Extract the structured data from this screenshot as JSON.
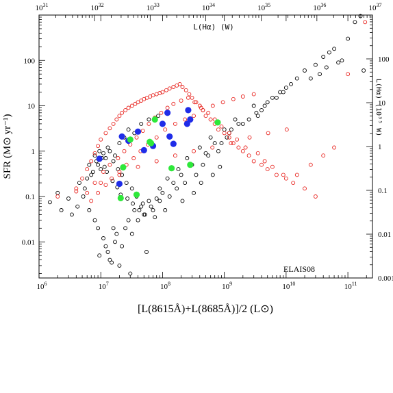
{
  "chart_data": {
    "type": "scatter",
    "title": "",
    "xlabel": "[L(8615Å)+L(8685Å)]/2 (L⊙)",
    "ylabel": "SFR (M⊙ yr⁻¹)",
    "top_xlabel": "L(Hα) (W)",
    "right_ylabel": "L(Hα) (10³⁵ W)",
    "annotation": "ELAIS08",
    "x_scale": "log",
    "y_scale": "log",
    "xlim": [
      1000000,
      250000000000
    ],
    "ylim": [
      0.0016,
      1000
    ],
    "top_xlim": [
      1e+31,
      1e+37
    ],
    "right_ylim": [
      0.001,
      1000
    ],
    "grid": false,
    "x_ticks": [
      {
        "value": 1000000,
        "base": "10",
        "exp": "6"
      },
      {
        "value": 10000000,
        "base": "10",
        "exp": "7"
      },
      {
        "value": 100000000,
        "base": "10",
        "exp": "8"
      },
      {
        "value": 1000000000,
        "base": "10",
        "exp": "9"
      },
      {
        "value": 10000000000,
        "base": "10",
        "exp": "10"
      },
      {
        "value": 100000000000,
        "base": "10",
        "exp": "11"
      }
    ],
    "y_ticks": [
      {
        "value": 0.01,
        "label": "0.01"
      },
      {
        "value": 0.1,
        "label": "0.1"
      },
      {
        "value": 1,
        "label": "1"
      },
      {
        "value": 10,
        "label": "10"
      },
      {
        "value": 100,
        "label": "100"
      }
    ],
    "top_ticks": [
      {
        "value": 1e+31,
        "base": "10",
        "exp": "31"
      },
      {
        "value": 1e+32,
        "base": "10",
        "exp": "32"
      },
      {
        "value": 1e+33,
        "base": "10",
        "exp": "33"
      },
      {
        "value": 1e+34,
        "base": "10",
        "exp": "34"
      },
      {
        "value": 1e+35,
        "base": "10",
        "exp": "35"
      },
      {
        "value": 1e+36,
        "base": "10",
        "exp": "36"
      },
      {
        "value": 1e+37,
        "base": "10",
        "exp": "37"
      }
    ],
    "right_ticks": [
      {
        "value": 100,
        "label": "100"
      },
      {
        "value": 10,
        "label": "10"
      },
      {
        "value": 1,
        "label": "1"
      },
      {
        "value": 0.1,
        "label": "0.1"
      },
      {
        "value": 0.01,
        "label": "0.01"
      },
      {
        "value": 0.001,
        "label": "0.001"
      }
    ],
    "series": [
      {
        "marker": "open-circle",
        "color": "#000000",
        "x": [
          1500000,
          2300000,
          3000000,
          3400000,
          4200000,
          5200000,
          6500000,
          8000000,
          9000000,
          9500000,
          11000000,
          12000000,
          13000000,
          14000000,
          15000000,
          16000000,
          17000000,
          18000000,
          20000000,
          22000000,
          25000000,
          28000000,
          30000000,
          32000000,
          35000000,
          40000000,
          45000000,
          50000000,
          55000000,
          60000000,
          70000000,
          80000000,
          90000000,
          100000000,
          120000000,
          150000000,
          180000000,
          200000000,
          250000000,
          300000000,
          400000000,
          500000000,
          600000000,
          700000000,
          1000000000,
          1200000000,
          1500000000,
          2000000000,
          3000000000,
          3500000000,
          4000000000,
          5000000000,
          6000000000,
          8000000000,
          10000000000,
          15000000000,
          20000000000,
          30000000000,
          40000000000,
          50000000000,
          60000000000,
          80000000000,
          100000000000,
          130000000000,
          160000000000,
          180000000000,
          2000000,
          4500000,
          5500000,
          7000000,
          9000000,
          10000000,
          12000000,
          14000000,
          17000000,
          20000000,
          24000000,
          28000000,
          35000000,
          45000000,
          60000000,
          85000000,
          6000000,
          7500000,
          8500000,
          11000000,
          13000000,
          16000000,
          19000000,
          22000000,
          26000000,
          32000000,
          38000000,
          48000000,
          65000000,
          90000000,
          130000000,
          170000000,
          230000000,
          350000000,
          450000000,
          550000000,
          800000000,
          900000000,
          1100000000,
          1300000000,
          1700000000,
          2500000000,
          3300000000,
          4500000000,
          7000000000,
          9000000000,
          12000000000,
          25000000000,
          35000000000,
          45000000000,
          70000000000,
          6500000,
          8000000,
          9500000,
          10500000,
          11500000,
          12500000,
          15500000,
          18500000,
          21000000,
          27000000,
          33000000,
          42000000,
          52000000,
          75000000,
          110000000,
          210000000,
          320000000,
          420000000,
          650000000,
          850000000
        ],
        "y": [
          0.075,
          0.05,
          0.09,
          0.04,
          0.06,
          0.1,
          0.05,
          0.03,
          0.02,
          0.005,
          0.012,
          0.008,
          0.006,
          0.004,
          0.0035,
          0.02,
          0.01,
          0.015,
          0.003,
          0.008,
          0.02,
          0.03,
          0.002,
          0.015,
          0.05,
          0.03,
          0.06,
          0.04,
          0.006,
          0.08,
          0.05,
          0.09,
          0.15,
          0.12,
          0.25,
          0.2,
          0.4,
          0.3,
          0.7,
          0.5,
          1.2,
          0.9,
          2,
          1.5,
          3,
          2.5,
          5,
          4,
          10,
          6,
          8,
          12,
          15,
          20,
          25,
          40,
          60,
          80,
          120,
          150,
          180,
          100,
          300,
          700,
          950,
          60,
          0.12,
          0.2,
          0.15,
          0.3,
          0.5,
          0.4,
          0.7,
          1,
          0.8,
          1.5,
          2,
          3,
          2.5,
          4,
          5,
          6,
          0.25,
          0.35,
          0.6,
          0.9,
          1.2,
          0.6,
          0.4,
          0.3,
          0.2,
          0.15,
          0.1,
          0.07,
          0.06,
          0.08,
          0.1,
          0.15,
          0.2,
          0.3,
          0.5,
          0.8,
          1,
          1.5,
          2,
          3,
          4,
          5,
          7,
          10,
          15,
          20,
          30,
          40,
          50,
          70,
          90,
          0.5,
          0.8,
          1,
          0.7,
          0.45,
          0.35,
          0.22,
          0.16,
          0.11,
          0.09,
          0.07,
          0.05,
          0.04,
          0.035,
          0.05,
          0.08,
          0.12,
          0.2,
          0.3,
          0.45
        ]
      },
      {
        "marker": "open-circle",
        "color": "#e8231e",
        "x": [
          4000000,
          5000000,
          6000000,
          7000000,
          8000000,
          9000000,
          10000000,
          12000000,
          14000000,
          16000000,
          18000000,
          20000000,
          22000000,
          25000000,
          28000000,
          32000000,
          36000000,
          40000000,
          45000000,
          50000000,
          56000000,
          63000000,
          70000000,
          80000000,
          90000000,
          100000000,
          115000000,
          130000000,
          150000000,
          170000000,
          190000000,
          210000000,
          240000000,
          270000000,
          300000000,
          350000000,
          400000000,
          450000000,
          500000000,
          600000000,
          700000000,
          800000000,
          1000000000,
          1200000000,
          1400000000,
          1700000000,
          2000000000,
          2500000000,
          3000000000,
          4000000000,
          5000000000,
          7000000000,
          10000000000,
          15000000000,
          25000000000,
          40000000000,
          60000000000,
          100000000000,
          190000000000,
          6000000,
          8000000,
          11000000,
          14000000,
          19000000,
          24000000,
          30000000,
          38000000,
          48000000,
          60000000,
          75000000,
          95000000,
          120000000,
          150000000,
          200000000,
          260000000,
          330000000,
          420000000,
          550000000,
          700000000,
          900000000,
          1200000000,
          1600000000,
          2200000000,
          3500000000,
          4500000000,
          6000000000,
          9000000000,
          13000000000,
          20000000000,
          30000000000,
          7000000,
          9000000,
          12000000,
          15000000,
          20000000,
          26000000,
          34000000,
          44000000,
          58000000,
          80000000,
          110000000,
          160000000,
          230000000,
          320000000,
          450000000,
          650000000,
          950000000,
          1400000000,
          2000000000,
          3000000000,
          2000000,
          4000000,
          10000000,
          20000000,
          40000000,
          80000000,
          160000000,
          320000000,
          640000000,
          1280000000,
          2560000000,
          5120000000,
          10240000000
        ],
        "y": [
          0.15,
          0.25,
          0.4,
          0.6,
          0.9,
          1.3,
          1.8,
          2.5,
          3.2,
          4,
          5,
          6,
          7,
          8,
          9,
          10,
          11,
          12,
          13,
          14,
          15,
          16,
          17,
          18,
          19,
          20,
          22,
          24,
          26,
          28,
          30,
          26,
          22,
          18,
          15,
          12,
          10,
          8,
          6,
          5,
          4,
          3,
          2.5,
          2,
          1.5,
          1.2,
          1,
          0.8,
          0.6,
          0.5,
          0.4,
          0.3,
          0.25,
          0.3,
          0.5,
          0.8,
          1.2,
          50,
          700,
          0.12,
          0.2,
          0.35,
          0.5,
          0.7,
          1,
          1.4,
          2,
          2.8,
          4,
          5.5,
          7,
          9,
          11,
          13,
          15,
          12,
          9,
          7,
          5,
          3.5,
          2.5,
          1.8,
          1.2,
          0.9,
          0.6,
          0.45,
          0.3,
          0.2,
          0.15,
          0.1,
          0.08,
          0.12,
          0.18,
          0.25,
          0.35,
          0.5,
          0.7,
          1,
          1.4,
          2,
          3,
          4,
          5,
          6,
          8,
          10,
          12,
          14,
          16,
          18,
          0.1,
          0.13,
          0.2,
          0.3,
          0.45,
          0.6,
          0.8,
          1,
          1.2,
          1.5,
          2,
          2.5,
          3
        ]
      },
      {
        "marker": "filled-circle",
        "color": "#1f2ce8",
        "x": [
          9500000,
          20000000,
          22000000,
          28000000,
          40000000,
          50000000,
          70000000,
          100000000,
          120000000,
          130000000,
          150000000,
          250000000,
          260000000,
          280000000
        ],
        "y": [
          0.68,
          0.19,
          2.1,
          1.7,
          2.7,
          1.05,
          1.3,
          4,
          7,
          2.1,
          1.45,
          4,
          8,
          5
        ]
      },
      {
        "marker": "filled-circle",
        "color": "#2ee83a",
        "x": [
          21000000,
          23000000,
          30000000,
          38000000,
          62000000,
          65000000,
          75000000,
          140000000,
          280000000,
          780000000
        ],
        "y": [
          0.092,
          0.44,
          1.8,
          0.11,
          1.6,
          1.5,
          5,
          0.42,
          0.5,
          4.3
        ]
      }
    ]
  }
}
